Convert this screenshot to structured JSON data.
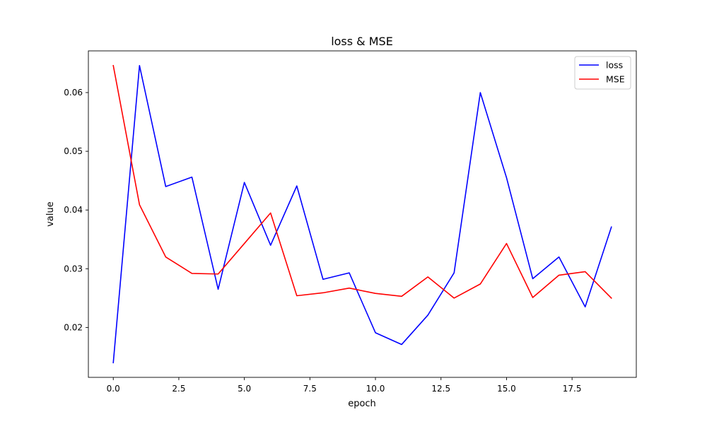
{
  "chart_data": {
    "type": "line",
    "title": "loss & MSE",
    "xlabel": "epoch",
    "ylabel": "value",
    "xlim": [
      -0.95,
      19.95
    ],
    "ylim": [
      0.0115,
      0.0671
    ],
    "x_ticks": [
      0.0,
      2.5,
      5.0,
      7.5,
      10.0,
      12.5,
      15.0,
      17.5
    ],
    "x_tick_labels": [
      "0.0",
      "2.5",
      "5.0",
      "7.5",
      "10.0",
      "12.5",
      "15.0",
      "17.5"
    ],
    "y_ticks": [
      0.02,
      0.03,
      0.04,
      0.05,
      0.06
    ],
    "y_tick_labels": [
      "0.02",
      "0.03",
      "0.04",
      "0.05",
      "0.06"
    ],
    "grid": false,
    "legend_position": "top-right",
    "x": [
      0,
      1,
      2,
      3,
      4,
      5,
      6,
      7,
      8,
      9,
      10,
      11,
      12,
      13,
      14,
      15,
      16,
      17,
      18,
      19
    ],
    "series": [
      {
        "name": "loss",
        "color": "#0000ff",
        "values": [
          0.014,
          0.0646,
          0.044,
          0.0456,
          0.0265,
          0.0447,
          0.034,
          0.0441,
          0.0282,
          0.0293,
          0.0191,
          0.0171,
          0.0221,
          0.0293,
          0.06,
          0.0455,
          0.0283,
          0.032,
          0.0235,
          0.0371
        ]
      },
      {
        "name": "MSE",
        "color": "#ff0000",
        "values": [
          0.0646,
          0.0409,
          0.032,
          0.0292,
          0.0291,
          0.0343,
          0.0395,
          0.0254,
          0.0259,
          0.0267,
          0.0258,
          0.0253,
          0.0286,
          0.025,
          0.0274,
          0.0343,
          0.0251,
          0.0289,
          0.0295,
          0.025
        ]
      }
    ]
  }
}
